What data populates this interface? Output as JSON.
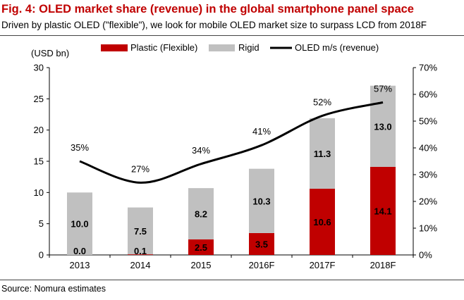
{
  "header": {
    "title": "Fig. 4: OLED market share (revenue) in the global smartphone panel space",
    "subtitle": "Driven by plastic OLED (\"flexible\"), we look for mobile OLED market size to surpass LCD from 2018F"
  },
  "footer": {
    "source": "Source: Nomura estimates"
  },
  "colors": {
    "plastic": "#c00000",
    "rigid": "#c0c0c0",
    "line": "#000000",
    "title": "#c00000"
  },
  "chart_data": {
    "type": "bar",
    "stacked": true,
    "categories": [
      "2013",
      "2014",
      "2015",
      "2016F",
      "2017F",
      "2018F"
    ],
    "series": [
      {
        "name": "Plastic (Flexible)",
        "values": [
          0.0,
          0.1,
          2.5,
          3.5,
          10.6,
          14.1
        ],
        "labels": [
          "0.0",
          "0.1",
          "2.5",
          "3.5",
          "10.6",
          "14.1"
        ]
      },
      {
        "name": "Rigid",
        "values": [
          10.0,
          7.5,
          8.2,
          10.3,
          11.3,
          13.0
        ],
        "labels": [
          "10.0",
          "7.5",
          "8.2",
          "10.3",
          "11.3",
          "13.0"
        ]
      }
    ],
    "line_series": {
      "name": "OLED m/s (revenue)",
      "axis": "right",
      "values": [
        35,
        27,
        34,
        41,
        52,
        57
      ],
      "labels": [
        "35%",
        "27%",
        "34%",
        "41%",
        "52%",
        "57%"
      ]
    },
    "ylabel": "(USD bn)",
    "ylim": [
      0,
      30
    ],
    "yticks": [
      "0",
      "5",
      "10",
      "15",
      "20",
      "25",
      "30"
    ],
    "y2lim": [
      0,
      70
    ],
    "y2ticks": [
      "0%",
      "10%",
      "20%",
      "30%",
      "40%",
      "50%",
      "60%",
      "70%"
    ],
    "grid": false,
    "legend_position": "top"
  }
}
